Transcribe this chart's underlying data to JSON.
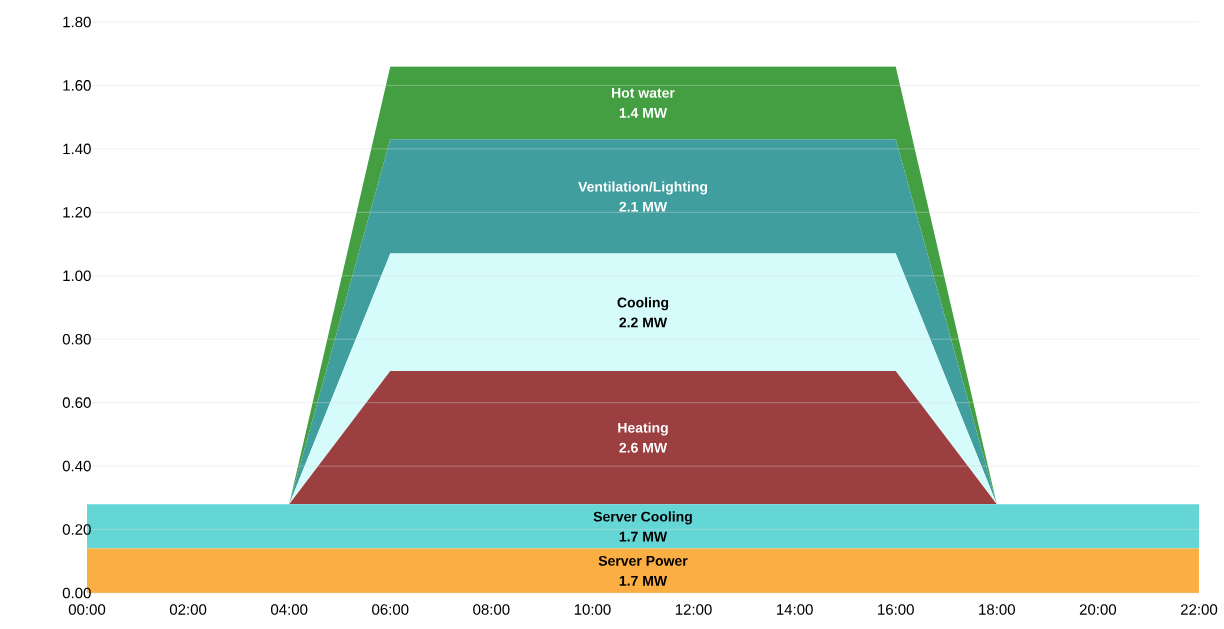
{
  "chart_data": {
    "type": "area",
    "stacked": true,
    "grid": "y",
    "x": [
      0,
      4,
      6,
      16,
      18,
      22
    ],
    "xlim": [
      0,
      22
    ],
    "ylim": [
      0,
      1.8
    ],
    "xticks": [
      {
        "value": 0,
        "label": "00:00"
      },
      {
        "value": 2,
        "label": "02:00"
      },
      {
        "value": 4,
        "label": "04:00"
      },
      {
        "value": 6,
        "label": "06:00"
      },
      {
        "value": 8,
        "label": "08:00"
      },
      {
        "value": 10,
        "label": "10:00"
      },
      {
        "value": 12,
        "label": "12:00"
      },
      {
        "value": 14,
        "label": "14:00"
      },
      {
        "value": 16,
        "label": "16:00"
      },
      {
        "value": 18,
        "label": "18:00"
      },
      {
        "value": 20,
        "label": "20:00"
      },
      {
        "value": 22,
        "label": "22:00"
      }
    ],
    "yticks": [
      {
        "value": 0,
        "label": "0.00"
      },
      {
        "value": 0.2,
        "label": "0.20"
      },
      {
        "value": 0.4,
        "label": "0.40"
      },
      {
        "value": 0.6,
        "label": "0.60"
      },
      {
        "value": 0.8,
        "label": "0.80"
      },
      {
        "value": 1.0,
        "label": "1.00"
      },
      {
        "value": 1.2,
        "label": "1.20"
      },
      {
        "value": 1.4,
        "label": "1.40"
      },
      {
        "value": 1.6,
        "label": "1.60"
      },
      {
        "value": 1.8,
        "label": "1.80"
      }
    ],
    "series": [
      {
        "name": "Server Power",
        "color": "#fbae42",
        "values": [
          0.14,
          0.14,
          0.14,
          0.14,
          0.14,
          0.14
        ]
      },
      {
        "name": "Server Cooling",
        "color": "#64d6d6",
        "values": [
          0.14,
          0.14,
          0.14,
          0.14,
          0.14,
          0.14
        ]
      },
      {
        "name": "Heating",
        "color": "#9b3f40",
        "values": [
          0,
          0,
          0.42,
          0.42,
          0,
          0
        ]
      },
      {
        "name": "Cooling",
        "color": "#d5fbfb",
        "values": [
          0,
          0,
          0.37,
          0.37,
          0,
          0
        ]
      },
      {
        "name": "Ventilation/Lighting",
        "color": "#419e9e",
        "values": [
          0,
          0,
          0.36,
          0.36,
          0,
          0
        ]
      },
      {
        "name": "Hot water",
        "color": "#439f42",
        "values": [
          0,
          0,
          0.23,
          0.23,
          0,
          0
        ]
      }
    ],
    "annotations": [
      "1.7 MW",
      "1.7 MW",
      "2.6 MW",
      "2.2 MW",
      "2.1 MW",
      "1.4 MW"
    ]
  }
}
